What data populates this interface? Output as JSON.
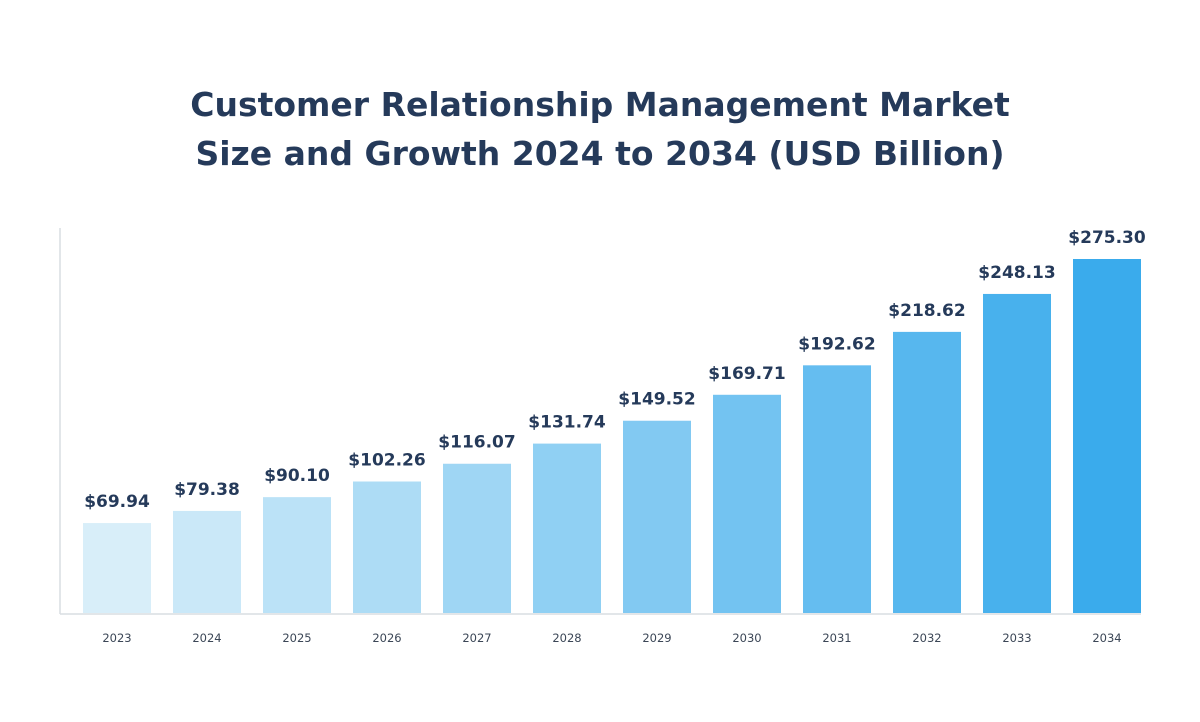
{
  "title_lines": [
    "Customer Relationship Management Market",
    "Size and Growth 2024 to 2034 (USD Billion)"
  ],
  "colors": {
    "title": "#253a5a",
    "axis": "#d9dde2",
    "bar_light": "#d8eef9",
    "bar_dark": "#3aabec"
  },
  "chart_data": {
    "type": "bar",
    "title": "Customer Relationship Management Market Size and Growth 2024 to 2034 (USD Billion)",
    "categories": [
      "2023",
      "2024",
      "2025",
      "2026",
      "2027",
      "2028",
      "2029",
      "2030",
      "2031",
      "2032",
      "2033",
      "2034"
    ],
    "values": [
      69.94,
      79.38,
      90.1,
      102.26,
      116.07,
      131.74,
      149.52,
      169.71,
      192.62,
      218.62,
      248.13,
      275.3
    ],
    "value_labels": [
      "$69.94",
      "$79.38",
      "$90.10",
      "$102.26",
      "$116.07",
      "$131.74",
      "$149.52",
      "$169.71",
      "$192.62",
      "$218.62",
      "$248.13",
      "$275.30"
    ],
    "xlabel": "",
    "ylabel": "",
    "ylim": [
      0,
      300
    ],
    "grid": false,
    "legend": "none"
  }
}
